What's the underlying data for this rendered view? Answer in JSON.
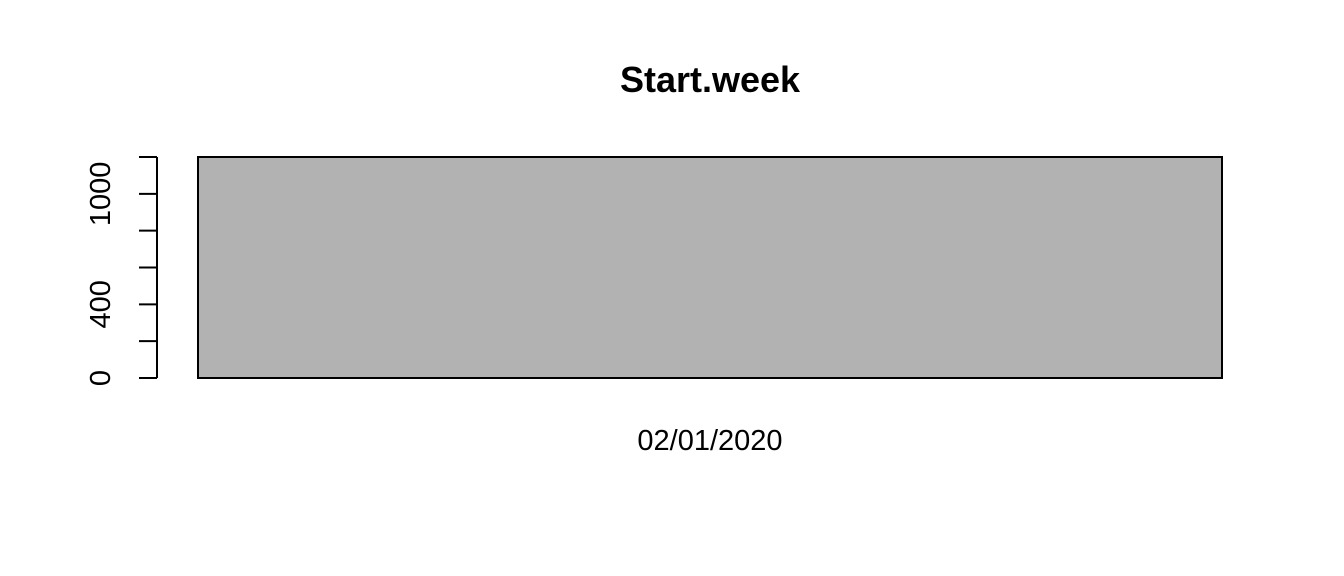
{
  "chart_data": {
    "type": "bar",
    "title": "Start.week",
    "categories": [
      "02/01/2020"
    ],
    "values": [
      1200
    ],
    "ylim": [
      0,
      1200
    ],
    "y_ticks": [
      0,
      200,
      400,
      600,
      800,
      1000,
      1200
    ],
    "y_tick_labels": [
      "0",
      "",
      "400",
      "",
      "",
      "1000",
      ""
    ],
    "grid": false,
    "legend": "none",
    "bar_color": "#b2b2b2",
    "border_color": "#000000"
  }
}
